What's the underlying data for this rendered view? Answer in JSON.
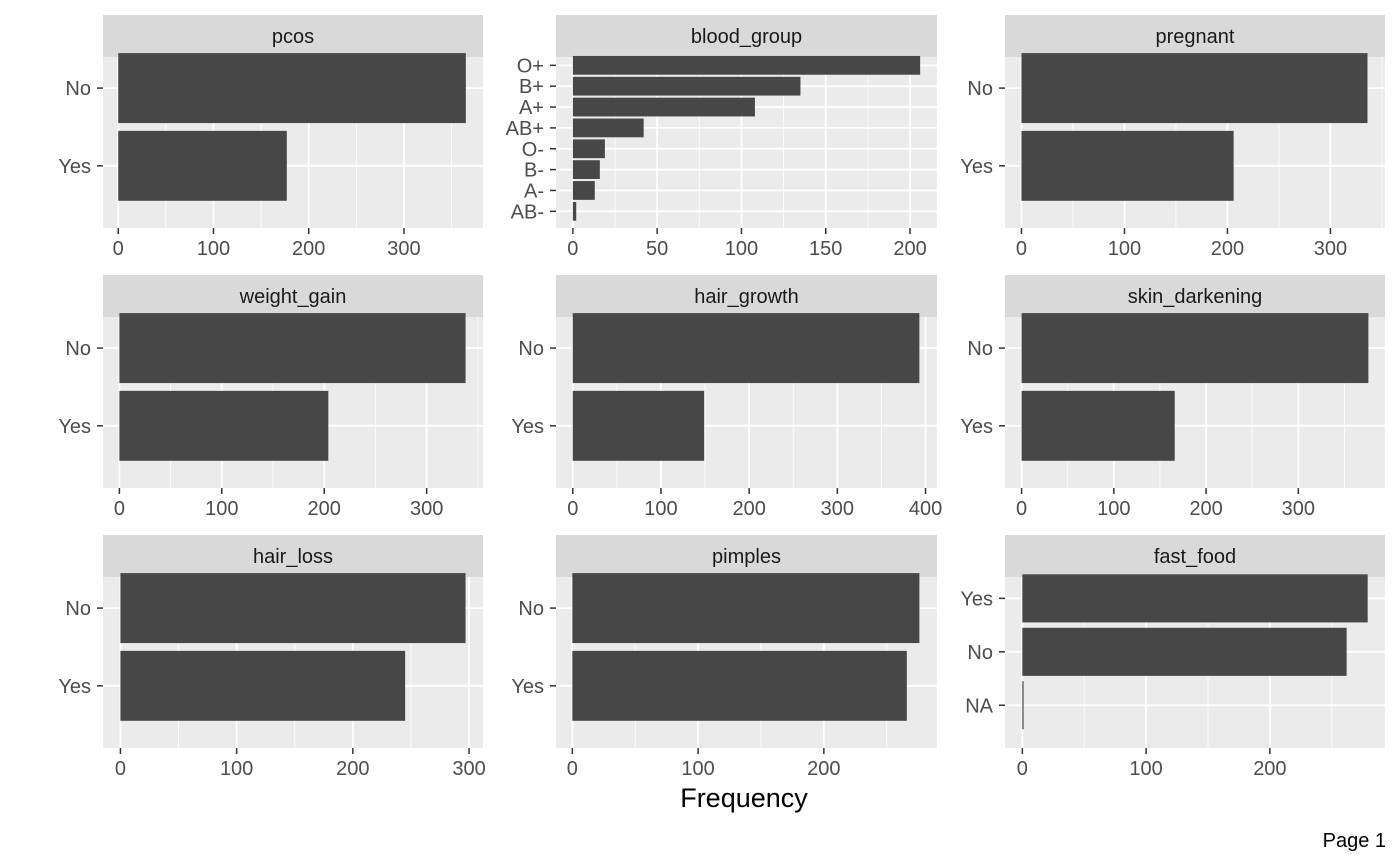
{
  "page_label": "Page 1",
  "style": {
    "panel_bg": "#EBEBEB",
    "strip_bg": "#D9D9D9",
    "bar_color": "#474747",
    "grid_color": "#FFFFFF",
    "tick_color": "#333333"
  },
  "chart_data": [
    {
      "type": "bar",
      "orientation": "horizontal",
      "title": "pcos",
      "categories": [
        "No",
        "Yes"
      ],
      "values": [
        365,
        177
      ],
      "xlim": [
        -16,
        383
      ],
      "xticks": [
        0,
        100,
        200,
        300
      ]
    },
    {
      "type": "bar",
      "orientation": "horizontal",
      "title": "blood_group",
      "categories": [
        "O+",
        "B+",
        "A+",
        "AB+",
        "O-",
        "B-",
        "A-",
        "AB-"
      ],
      "values": [
        206,
        135,
        108,
        42,
        19,
        16,
        13,
        2
      ],
      "xlim": [
        -10,
        216
      ],
      "xticks": [
        0,
        50,
        100,
        150,
        200
      ]
    },
    {
      "type": "bar",
      "orientation": "horizontal",
      "title": "pregnant",
      "categories": [
        "No",
        "Yes"
      ],
      "values": [
        336,
        206
      ],
      "xlim": [
        -16,
        353
      ],
      "xticks": [
        0,
        100,
        200,
        300
      ]
    },
    {
      "type": "bar",
      "orientation": "horizontal",
      "title": "weight_gain",
      "categories": [
        "No",
        "Yes"
      ],
      "values": [
        338,
        204
      ],
      "xlim": [
        -16,
        355
      ],
      "xticks": [
        0,
        100,
        200,
        300
      ]
    },
    {
      "type": "bar",
      "orientation": "horizontal",
      "title": "hair_growth",
      "categories": [
        "No",
        "Yes"
      ],
      "values": [
        393,
        149
      ],
      "xlim": [
        -19,
        413
      ],
      "xticks": [
        0,
        100,
        200,
        300,
        400
      ]
    },
    {
      "type": "bar",
      "orientation": "horizontal",
      "title": "skin_darkening",
      "categories": [
        "No",
        "Yes"
      ],
      "values": [
        376,
        166
      ],
      "xlim": [
        -18,
        394
      ],
      "xticks": [
        0,
        100,
        200,
        300
      ]
    },
    {
      "type": "bar",
      "orientation": "horizontal",
      "title": "hair_loss",
      "categories": [
        "No",
        "Yes"
      ],
      "values": [
        297,
        245
      ],
      "xlim": [
        -15,
        312
      ],
      "xticks": [
        0,
        100,
        200,
        300
      ]
    },
    {
      "type": "bar",
      "orientation": "horizontal",
      "title": "pimples",
      "categories": [
        "No",
        "Yes"
      ],
      "values": [
        276,
        266
      ],
      "xlim": [
        -13,
        290
      ],
      "xticks": [
        0,
        100,
        200
      ]
    },
    {
      "type": "bar",
      "orientation": "horizontal",
      "title": "fast_food",
      "categories": [
        "Yes",
        "No",
        "NA"
      ],
      "values": [
        279,
        262,
        1
      ],
      "xlim": [
        -14,
        293
      ],
      "xticks": [
        0,
        100,
        200
      ]
    }
  ],
  "xlabel": "Frequency"
}
